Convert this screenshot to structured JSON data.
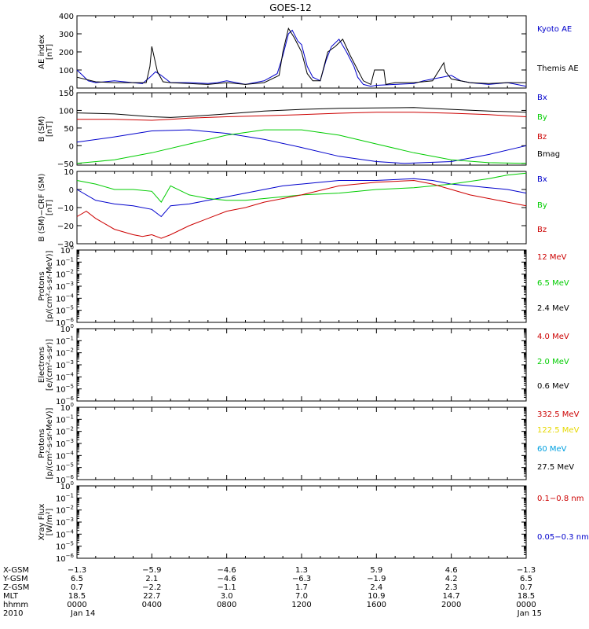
{
  "title": "GOES-12",
  "colors": {
    "black": "#000000",
    "red": "#cc0000",
    "green": "#00cc00",
    "blue": "#0000cc",
    "yellow": "#e6d800",
    "cyan": "#00a0e0"
  },
  "chart_data": [
    {
      "type": "line",
      "panel": "ae_index",
      "ylabel": [
        "AE index",
        "[nT]"
      ],
      "ylim": [
        0,
        400
      ],
      "yticks": [
        "0",
        "100",
        "200",
        "300",
        "400"
      ],
      "xlim": [
        0,
        24
      ],
      "series": [
        {
          "name": "Kyoto AE",
          "color": "blue",
          "x": [
            0,
            0.3,
            0.6,
            1,
            2,
            3,
            3.5,
            3.9,
            4.2,
            4.5,
            5,
            6,
            7,
            7.5,
            8,
            9,
            10,
            10.7,
            11,
            11.3,
            11.5,
            11.8,
            12,
            12.3,
            12.6,
            13,
            13.3,
            13.6,
            14,
            14.4,
            14.8,
            15,
            15.3,
            15.7,
            16,
            17,
            18,
            18.5,
            19,
            19.5,
            20,
            20.5,
            21,
            22,
            23,
            24
          ],
          "values": [
            100,
            70,
            40,
            30,
            40,
            30,
            25,
            60,
            90,
            70,
            30,
            30,
            25,
            30,
            40,
            20,
            40,
            80,
            180,
            300,
            320,
            260,
            240,
            120,
            60,
            40,
            150,
            230,
            270,
            200,
            120,
            60,
            20,
            10,
            15,
            20,
            25,
            40,
            50,
            60,
            70,
            40,
            30,
            20,
            30,
            10
          ]
        },
        {
          "name": "Themis AE",
          "color": "black",
          "x": [
            0,
            1,
            2,
            3,
            3.7,
            3.9,
            4.0,
            4.3,
            4.6,
            5,
            6,
            7,
            8,
            9,
            10,
            10.8,
            11,
            11.3,
            11.6,
            12,
            12.3,
            12.6,
            13,
            13.4,
            13.8,
            14.2,
            14.6,
            15,
            15.3,
            15.7,
            15.9,
            16.0,
            16.4,
            16.5,
            17,
            18,
            19,
            19.6,
            19.7,
            20,
            21,
            22,
            23,
            24
          ],
          "values": [
            60,
            35,
            30,
            30,
            30,
            120,
            230,
            90,
            35,
            30,
            25,
            20,
            30,
            20,
            30,
            70,
            200,
            330,
            280,
            200,
            80,
            40,
            40,
            200,
            230,
            270,
            180,
            100,
            40,
            20,
            100,
            100,
            100,
            20,
            30,
            30,
            40,
            140,
            90,
            50,
            30,
            25,
            30,
            30
          ]
        }
      ]
    },
    {
      "type": "line",
      "panel": "b_field",
      "ylabel": [
        "B (SM)",
        "[nT]"
      ],
      "ylim": [
        -55,
        150
      ],
      "yticks": [
        "−50",
        "0",
        "50",
        "100",
        "150"
      ],
      "xlim": [
        0,
        24
      ],
      "series": [
        {
          "name": "Bx",
          "color": "blue",
          "x": [
            0,
            2,
            4,
            6,
            8,
            10,
            12,
            14,
            16,
            17.5,
            20,
            22,
            24
          ],
          "values": [
            10,
            25,
            42,
            45,
            35,
            18,
            -5,
            -30,
            -45,
            -50,
            -45,
            -25,
            0
          ]
        },
        {
          "name": "By",
          "color": "green",
          "x": [
            0,
            2,
            4,
            6,
            8,
            10,
            12,
            14,
            16,
            18,
            20,
            22,
            24
          ],
          "values": [
            -50,
            -40,
            -20,
            5,
            30,
            45,
            45,
            30,
            5,
            -20,
            -40,
            -48,
            -50
          ]
        },
        {
          "name": "Bz",
          "color": "red",
          "x": [
            0,
            2,
            4,
            5,
            6,
            8,
            10,
            12,
            14,
            16,
            18,
            20,
            22,
            24
          ],
          "values": [
            75,
            75,
            72,
            75,
            78,
            82,
            85,
            88,
            92,
            95,
            95,
            92,
            88,
            82
          ]
        },
        {
          "name": "Bmag",
          "color": "black",
          "x": [
            0,
            2,
            4,
            5,
            6,
            8,
            10,
            12,
            14,
            16,
            18,
            20,
            22,
            24
          ],
          "values": [
            93,
            90,
            82,
            80,
            83,
            90,
            98,
            103,
            106,
            107,
            108,
            103,
            98,
            95
          ]
        }
      ]
    },
    {
      "type": "line",
      "panel": "b_minus_model",
      "ylabel": [
        "B (SM)−CRF (SM)",
        "[nT]"
      ],
      "ylim": [
        -30,
        10
      ],
      "yticks": [
        "−30",
        "−20",
        "−10",
        "0",
        "10"
      ],
      "xlim": [
        0,
        24
      ],
      "series": [
        {
          "name": "Bx",
          "color": "blue",
          "x": [
            0,
            1,
            2,
            3,
            4,
            4.5,
            5,
            6,
            7,
            8,
            9,
            10,
            11,
            12,
            14,
            16,
            18,
            19,
            20,
            21,
            22,
            23,
            24
          ],
          "values": [
            0,
            -6,
            -8,
            -9,
            -11,
            -15,
            -9,
            -8,
            -6,
            -4,
            -2,
            0,
            2,
            3,
            5,
            5,
            6,
            5,
            3,
            2,
            1,
            0,
            -2
          ]
        },
        {
          "name": "By",
          "color": "green",
          "x": [
            0,
            1,
            2,
            3,
            4,
            4.5,
            5,
            6,
            7,
            8,
            9,
            10,
            12,
            14,
            16,
            18,
            20,
            22,
            23,
            24
          ],
          "values": [
            5,
            3,
            0,
            0,
            -1,
            -7,
            2,
            -3,
            -5,
            -6,
            -6,
            -5,
            -3,
            -2,
            0,
            1,
            3,
            6,
            8,
            9
          ]
        },
        {
          "name": "Bz",
          "color": "red",
          "x": [
            0,
            0.5,
            1,
            2,
            3,
            3.5,
            4,
            4.5,
            5,
            6,
            7,
            8,
            9,
            10,
            11,
            12,
            14,
            16,
            18,
            19,
            20,
            21,
            22,
            23,
            24
          ],
          "values": [
            -15,
            -12,
            -16,
            -22,
            -25,
            -26,
            -25,
            -27,
            -25,
            -20,
            -16,
            -12,
            -10,
            -7,
            -5,
            -3,
            2,
            4,
            5,
            3,
            0,
            -3,
            -5,
            -7,
            -9
          ]
        }
      ]
    },
    {
      "type": "line",
      "panel": "protons_low",
      "ylabel": [
        "Protons",
        "[p/(cm²-s-sr-MeV)]"
      ],
      "ylim_exp": [
        -6,
        0
      ],
      "scale": "log",
      "series": [
        {
          "name": "12 MeV",
          "color": "red",
          "values": []
        },
        {
          "name": "6.5 MeV",
          "color": "green",
          "values": []
        },
        {
          "name": "2.4 MeV",
          "color": "black",
          "values": []
        }
      ]
    },
    {
      "type": "line",
      "panel": "electrons",
      "ylabel": [
        "Electrons",
        "[e/(cm²-s-sr)]"
      ],
      "ylim_exp": [
        -6,
        0
      ],
      "scale": "log",
      "series": [
        {
          "name": "4.0 MeV",
          "color": "red",
          "values": []
        },
        {
          "name": "2.0 MeV",
          "color": "green",
          "values": []
        },
        {
          "name": "0.6 MeV",
          "color": "black",
          "values": []
        }
      ]
    },
    {
      "type": "line",
      "panel": "protons_high",
      "ylabel": [
        "Protons",
        "[p/(cm²-s-sr-MeV)]"
      ],
      "ylim_exp": [
        -6,
        0
      ],
      "scale": "log",
      "series": [
        {
          "name": "332.5 MeV",
          "color": "red",
          "values": []
        },
        {
          "name": "122.5 MeV",
          "color": "yellow",
          "values": []
        },
        {
          "name": "60 MeV",
          "color": "cyan",
          "values": []
        },
        {
          "name": "27.5 MeV",
          "color": "black",
          "values": []
        }
      ]
    },
    {
      "type": "line",
      "panel": "xray",
      "ylabel": [
        "Xray  Flux",
        "[W/m²]"
      ],
      "ylim_exp": [
        -6,
        0
      ],
      "scale": "log",
      "series": [
        {
          "name": "0.1−0.8 nm",
          "color": "red",
          "values": []
        },
        {
          "name": "0.05−0.3 nm",
          "color": "blue",
          "values": []
        }
      ]
    }
  ],
  "x_axis": {
    "row_labels": [
      "X-GSM",
      "Y-GSM",
      "Z-GSM",
      "MLT",
      "hhmm",
      "2010"
    ],
    "columns": [
      [
        "−1.3",
        "6.5",
        "0.7",
        "18.5",
        "0000",
        "Jan 14"
      ],
      [
        "−5.9",
        "2.1",
        "−2.2",
        "22.7",
        "0400",
        ""
      ],
      [
        "−4.6",
        "−4.6",
        "−1.1",
        "3.0",
        "0800",
        ""
      ],
      [
        "1.3",
        "−6.3",
        "1.7",
        "7.0",
        "1200",
        ""
      ],
      [
        "5.9",
        "−1.9",
        "2.4",
        "10.9",
        "1600",
        ""
      ],
      [
        "4.6",
        "4.2",
        "2.3",
        "14.7",
        "2000",
        ""
      ],
      [
        "−1.3",
        "6.5",
        "0.7",
        "18.5",
        "0000",
        "Jan 15"
      ]
    ]
  }
}
